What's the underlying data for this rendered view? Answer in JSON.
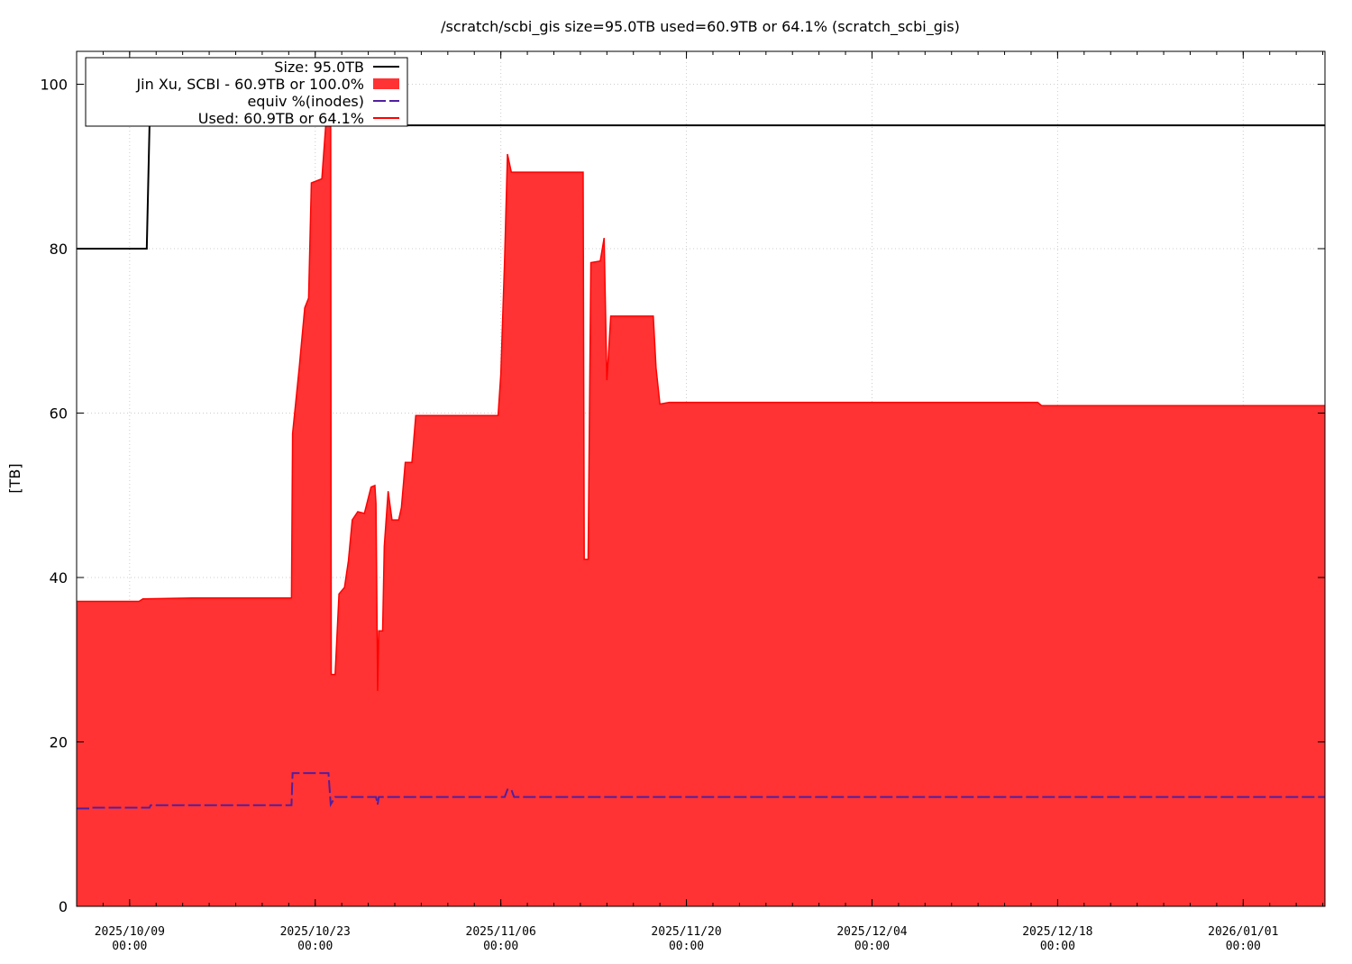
{
  "chart_data": {
    "type": "area",
    "title": "/scratch/scbi_gis size=95.0TB used=60.9TB or 64.1% (scratch_scbi_gis)",
    "xlabel": "",
    "ylabel": "[TB]",
    "x_range": [
      "2025-10-05 00:00",
      "2026-01-07 04:00"
    ],
    "ylim": [
      0,
      104
    ],
    "yticks": [
      0,
      20,
      40,
      60,
      80,
      100
    ],
    "xticks": [
      {
        "t": "2025-10-09 00:00",
        "label": [
          "2025/10/09",
          "00:00"
        ]
      },
      {
        "t": "2025-10-23 00:00",
        "label": [
          "2025/10/23",
          "00:00"
        ]
      },
      {
        "t": "2025-11-06 00:00",
        "label": [
          "2025/11/06",
          "00:00"
        ]
      },
      {
        "t": "2025-11-20 00:00",
        "label": [
          "2025/11/20",
          "00:00"
        ]
      },
      {
        "t": "2025-12-04 00:00",
        "label": [
          "2025/12/04",
          "00:00"
        ]
      },
      {
        "t": "2025-12-18 00:00",
        "label": [
          "2025/12/18",
          "00:00"
        ]
      },
      {
        "t": "2026-01-01 00:00",
        "label": [
          "2026/01/01",
          "00:00"
        ]
      }
    ],
    "grid": true,
    "legend_position": "top-left",
    "series": [
      {
        "name": "Size: 95.0TB",
        "style": "line",
        "color": "#000000",
        "points": [
          [
            "2025-10-05 00:00",
            80.0
          ],
          [
            "2025-10-10 07:00",
            80.0
          ],
          [
            "2025-10-10 12:00",
            95.0
          ],
          [
            "2026-01-07 04:00",
            95.0
          ]
        ]
      },
      {
        "name": "Jin Xu, SCBI - 60.9TB or 100.0%",
        "style": "filled-area",
        "color": "#ff3333",
        "points": [
          [
            "2025-10-05 00:00",
            37.1
          ],
          [
            "2025-10-09 17:00",
            37.1
          ],
          [
            "2025-10-10 00:00",
            37.4
          ],
          [
            "2025-10-13 17:00",
            37.5
          ],
          [
            "2025-10-21 05:00",
            37.5
          ],
          [
            "2025-10-21 07:00",
            57.5
          ],
          [
            "2025-10-21 19:00",
            65.5
          ],
          [
            "2025-10-22 05:00",
            72.8
          ],
          [
            "2025-10-22 12:00",
            74.0
          ],
          [
            "2025-10-22 17:00",
            88.0
          ],
          [
            "2025-10-23 12:00",
            88.5
          ],
          [
            "2025-10-23 19:00",
            95.0
          ],
          [
            "2025-10-24 04:00",
            95.0
          ],
          [
            "2025-10-24 05:00",
            28.2
          ],
          [
            "2025-10-24 12:00",
            28.2
          ],
          [
            "2025-10-24 19:00",
            38.0
          ],
          [
            "2025-10-25 05:00",
            38.8
          ],
          [
            "2025-10-25 12:00",
            42.0
          ],
          [
            "2025-10-25 19:00",
            47.0
          ],
          [
            "2025-10-26 05:00",
            48.0
          ],
          [
            "2025-10-26 17:00",
            47.8
          ],
          [
            "2025-10-27 05:00",
            51.0
          ],
          [
            "2025-10-27 12:00",
            51.2
          ],
          [
            "2025-10-27 14:00",
            49.0
          ],
          [
            "2025-10-27 17:00",
            26.2
          ],
          [
            "2025-10-27 19:00",
            33.5
          ],
          [
            "2025-10-28 02:00",
            33.5
          ],
          [
            "2025-10-28 05:00",
            43.8
          ],
          [
            "2025-10-28 12:00",
            50.5
          ],
          [
            "2025-10-28 19:00",
            47.0
          ],
          [
            "2025-10-29 07:00",
            47.0
          ],
          [
            "2025-10-29 12:00",
            48.5
          ],
          [
            "2025-10-29 19:00",
            54.0
          ],
          [
            "2025-10-30 07:00",
            54.0
          ],
          [
            "2025-10-30 14:00",
            59.7
          ],
          [
            "2025-11-05 19:00",
            59.7
          ],
          [
            "2025-11-06 00:00",
            64.7
          ],
          [
            "2025-11-06 07:00",
            79.0
          ],
          [
            "2025-11-06 12:00",
            91.5
          ],
          [
            "2025-11-06 19:00",
            89.3
          ],
          [
            "2025-11-12 05:00",
            89.3
          ],
          [
            "2025-11-12 07:00",
            42.2
          ],
          [
            "2025-11-12 14:00",
            42.2
          ],
          [
            "2025-11-12 19:00",
            78.3
          ],
          [
            "2025-11-13 12:00",
            78.5
          ],
          [
            "2025-11-13 19:00",
            81.3
          ],
          [
            "2025-11-14 00:00",
            64.0
          ],
          [
            "2025-11-14 07:00",
            71.8
          ],
          [
            "2025-11-17 12:00",
            71.8
          ],
          [
            "2025-11-17 17:00",
            65.5
          ],
          [
            "2025-11-18 00:00",
            61.1
          ],
          [
            "2025-11-18 17:00",
            61.3
          ],
          [
            "2025-12-16 12:00",
            61.3
          ],
          [
            "2025-12-16 19:00",
            60.9
          ],
          [
            "2026-01-07 04:00",
            60.9
          ]
        ]
      },
      {
        "name": "equiv %(inodes)",
        "style": "dashed-line",
        "color": "#5020a0",
        "points": [
          [
            "2025-10-05 00:00",
            11.9
          ],
          [
            "2025-10-06 00:00",
            11.9
          ],
          [
            "2025-10-06 01:00",
            12.0
          ],
          [
            "2025-10-10 12:00",
            12.0
          ],
          [
            "2025-10-10 14:00",
            12.3
          ],
          [
            "2025-10-21 05:00",
            12.3
          ],
          [
            "2025-10-21 07:00",
            16.2
          ],
          [
            "2025-10-24 00:00",
            16.2
          ],
          [
            "2025-10-24 04:00",
            12.4
          ],
          [
            "2025-10-24 12:00",
            13.3
          ],
          [
            "2025-10-27 14:00",
            13.3
          ],
          [
            "2025-10-27 17:00",
            12.4
          ],
          [
            "2025-10-27 19:00",
            13.3
          ],
          [
            "2025-11-06 07:00",
            13.3
          ],
          [
            "2025-11-06 12:00",
            14.2
          ],
          [
            "2025-11-06 19:00",
            14.2
          ],
          [
            "2025-11-07 00:00",
            13.3
          ],
          [
            "2026-01-07 04:00",
            13.3
          ]
        ]
      },
      {
        "name": "Used: 60.9TB or 64.1%",
        "style": "line",
        "color": "#ff0000"
      }
    ]
  }
}
